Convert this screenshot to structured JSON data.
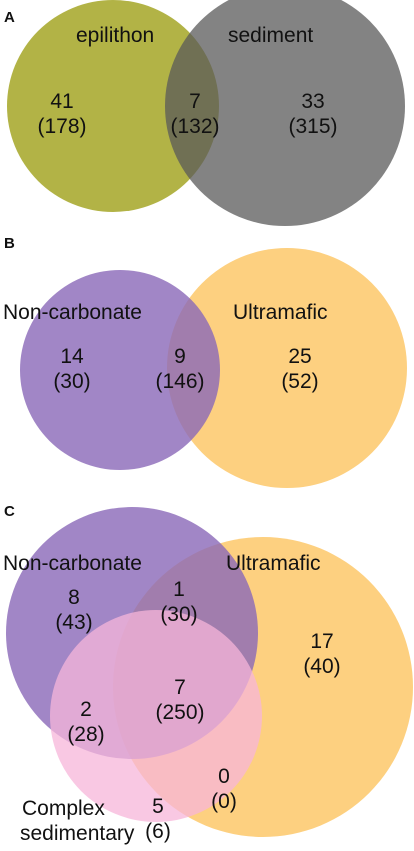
{
  "panels": [
    {
      "letter": "A",
      "sets": [
        {
          "label": "epilithon",
          "color": "#a4a626"
        },
        {
          "label": "sediment",
          "color": "#5a5a5a"
        }
      ],
      "regions": [
        {
          "count": "41",
          "paren": "(178)"
        },
        {
          "count": "7",
          "paren": "(132)"
        },
        {
          "count": "33",
          "paren": "(315)"
        }
      ]
    },
    {
      "letter": "B",
      "sets": [
        {
          "label": "Non-carbonate",
          "color": "#8a68b8"
        },
        {
          "label": "Ultramafic",
          "color": "#fdd080"
        }
      ],
      "regions": [
        {
          "count": "14",
          "paren": "(30)"
        },
        {
          "count": "9",
          "paren": "(146)"
        },
        {
          "count": "25",
          "paren": "(52)"
        }
      ]
    },
    {
      "letter": "C",
      "sets": [
        {
          "label": "Non-carbonate",
          "color": "#8a68b8"
        },
        {
          "label": "Ultramafic",
          "color": "#fdd080"
        },
        {
          "label_line1": "Complex",
          "label_line2": "sedimentary",
          "color": "#f7b6da"
        }
      ],
      "regions": [
        {
          "count": "8",
          "paren": "(43)"
        },
        {
          "count": "1",
          "paren": "(30)"
        },
        {
          "count": "17",
          "paren": "(40)"
        },
        {
          "count": "2",
          "paren": "(28)"
        },
        {
          "count": "7",
          "paren": "(250)"
        },
        {
          "count": "0",
          "paren": "(0)"
        },
        {
          "count": "5",
          "paren": "(6)"
        }
      ]
    }
  ]
}
